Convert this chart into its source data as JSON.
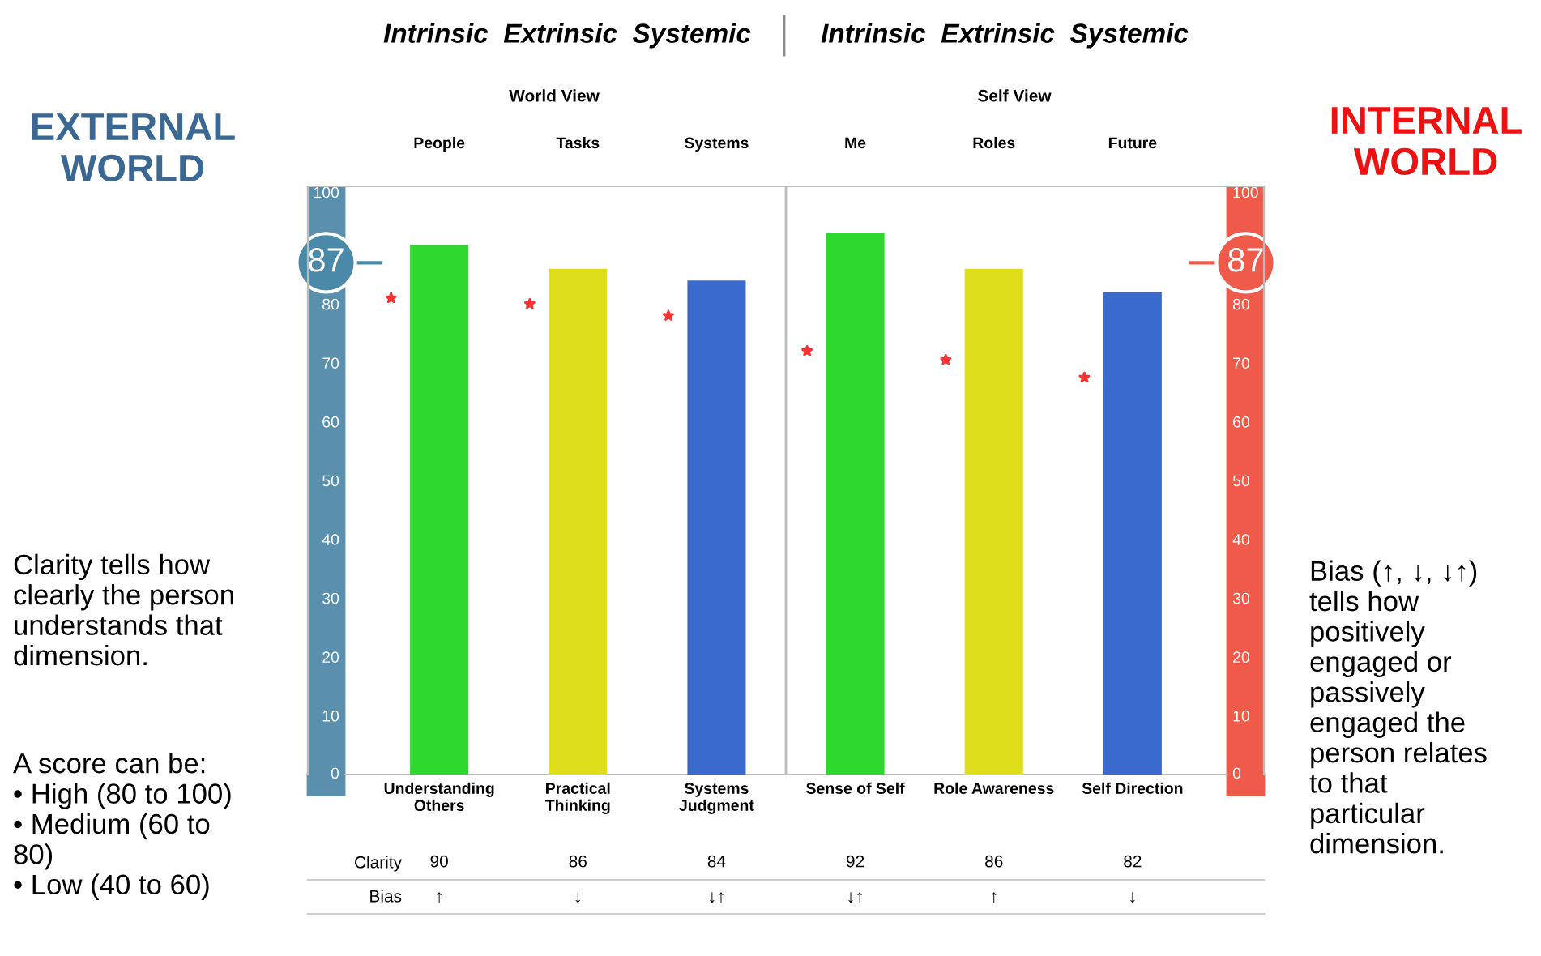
{
  "chart_data": {
    "type": "bar",
    "categories": [
      "Understanding\nOthers",
      "Practical\nThinking",
      "Systems\nJudgment",
      "Sense of Self",
      "Role Awareness",
      "Self Direction"
    ],
    "series": [
      {
        "colors": [
          "#2ed82e",
          "#dede1a",
          "#3a6bcc",
          "#2ed82e",
          "#dede1a",
          "#3a6bcc"
        ],
        "values": [
          90,
          86,
          84,
          92,
          86,
          82
        ],
        "value_labels": [
          "90",
          "86",
          "84",
          "92",
          "86",
          "82"
        ]
      },
      {
        "type": "scatter",
        "color": "#ff3030",
        "marker": "star",
        "values": [
          81,
          80,
          78,
          72,
          70.5,
          67.5
        ]
      }
    ],
    "ylim": [
      0,
      100
    ],
    "yticks": [
      0,
      10,
      20,
      30,
      40,
      50,
      60,
      70,
      80,
      100
    ],
    "y2lim": [
      0,
      100
    ],
    "y2ticks": [
      0,
      10,
      20,
      30,
      40,
      50,
      60,
      70,
      80,
      100
    ],
    "ref_lines": [
      {
        "axis": "y",
        "value": 87,
        "label": "87",
        "color": "#4a8aa8"
      },
      {
        "axis": "y2",
        "value": 87,
        "label": "87",
        "color": "#ef5a4a"
      }
    ],
    "grid": false,
    "annotations": [
      "Intrinsic  Extrinsic  Systemic",
      "Intrinsic  Extrinsic  Systemic",
      "World View",
      "Self View",
      "People",
      "Tasks",
      "Systems",
      "Me",
      "Roles",
      "Future",
      "EXTERNAL\nWORLD",
      "INTERNAL\nWORLD",
      "Clarity tells how\nclearly the person\nunderstands that\ndimension.",
      "A score can be:\n• High (80 to 100)\n• Medium (60 to\n80)\n• Low (40 to 60)",
      "Bias (↑, ↓, ↓↑)\ntells how\npositively\nengaged or\npassively\nengaged the\nperson relates\nto that\nparticular\ndimension.",
      "Clarity",
      "Bias",
      "↑",
      "↓",
      "↓↑",
      "↓↑",
      "↑",
      "↓"
    ]
  }
}
